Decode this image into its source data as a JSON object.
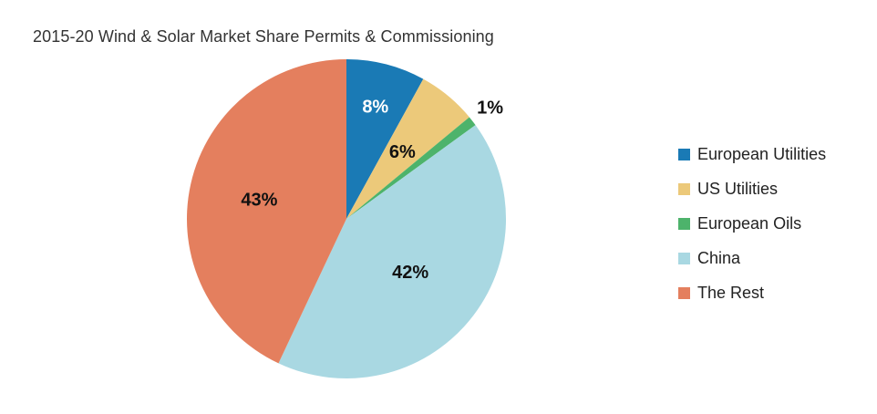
{
  "chart_data": {
    "type": "pie",
    "title": "2015-20 Wind & Solar Market Share Permits & Commissioning",
    "slices": [
      {
        "name": "European Utilities",
        "value": 8,
        "label": "8%",
        "color": "#1a7ab5",
        "label_color": "#ffffff"
      },
      {
        "name": "US Utilities",
        "value": 6,
        "label": "6%",
        "color": "#ecc97a",
        "label_color": "#111111"
      },
      {
        "name": "European Oils",
        "value": 1,
        "label": "1%",
        "color": "#4db36b",
        "label_color": "#111111"
      },
      {
        "name": "China",
        "value": 42,
        "label": "42%",
        "color": "#a9d8e2",
        "label_color": "#111111"
      },
      {
        "name": "The Rest",
        "value": 43,
        "label": "43%",
        "color": "#e47f5e",
        "label_color": "#111111"
      }
    ],
    "legend_position": "right"
  }
}
